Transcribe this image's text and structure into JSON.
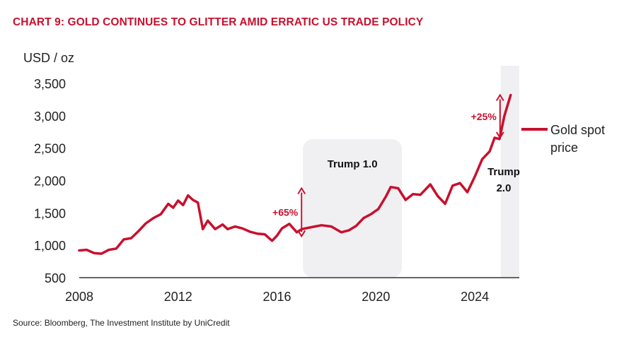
{
  "chart_data": {
    "type": "line",
    "title": "CHART 9: GOLD CONTINUES TO GLITTER AMID ERRATIC US TRADE POLICY",
    "ylabel": "USD / oz",
    "xlabel": "",
    "source": "Source: Bloomberg, The Investment Institute by UniCredit",
    "ylim": [
      500,
      3500
    ],
    "xlim": [
      2008,
      2025.8
    ],
    "yticks": [
      "3,500",
      "3,000",
      "2,500",
      "2,000",
      "1,500",
      "1,000",
      "500"
    ],
    "ytick_values": [
      3500,
      3000,
      2500,
      2000,
      1500,
      1000,
      500
    ],
    "xticks": [
      "2008",
      "2012",
      "2016",
      "2020",
      "2024"
    ],
    "xtick_values": [
      2008,
      2012,
      2016,
      2020,
      2024
    ],
    "color": "#c8102e",
    "shade_color": "#f0f0f2",
    "series": [
      {
        "name": "Gold spot price",
        "legend_lines": [
          "Gold spot",
          "price"
        ],
        "x": [
          2008.0,
          2008.3,
          2008.6,
          2008.9,
          2009.2,
          2009.5,
          2009.8,
          2010.1,
          2010.4,
          2010.7,
          2011.0,
          2011.3,
          2011.6,
          2011.8,
          2012.0,
          2012.2,
          2012.4,
          2012.6,
          2012.8,
          2013.0,
          2013.2,
          2013.5,
          2013.8,
          2014.0,
          2014.3,
          2014.6,
          2014.9,
          2015.2,
          2015.5,
          2015.8,
          2016.0,
          2016.2,
          2016.5,
          2016.8,
          2017.0,
          2017.4,
          2017.8,
          2018.2,
          2018.6,
          2018.9,
          2019.2,
          2019.5,
          2019.8,
          2020.1,
          2020.4,
          2020.6,
          2020.9,
          2021.2,
          2021.5,
          2021.8,
          2022.2,
          2022.5,
          2022.8,
          2023.1,
          2023.4,
          2023.7,
          2024.0,
          2024.3,
          2024.6,
          2024.8,
          2025.0,
          2025.2,
          2025.45
        ],
        "values": [
          920,
          930,
          880,
          870,
          930,
          950,
          1090,
          1110,
          1220,
          1340,
          1420,
          1480,
          1640,
          1580,
          1690,
          1620,
          1770,
          1700,
          1660,
          1250,
          1380,
          1250,
          1320,
          1250,
          1290,
          1260,
          1210,
          1180,
          1170,
          1070,
          1150,
          1260,
          1330,
          1200,
          1250,
          1280,
          1310,
          1290,
          1200,
          1230,
          1300,
          1420,
          1480,
          1560,
          1750,
          1900,
          1880,
          1700,
          1790,
          1780,
          1940,
          1760,
          1640,
          1920,
          1960,
          1820,
          2060,
          2330,
          2450,
          2660,
          2640,
          3000,
          3320
        ]
      }
    ],
    "shaded_periods": [
      {
        "label": "Trump 1.0",
        "start": 2017.05,
        "end": 2021.05
      },
      {
        "label_lines": [
          "Trump",
          "2.0"
        ],
        "start": 2025.05,
        "end": 2025.8
      }
    ],
    "annotations": [
      {
        "text": "+65%",
        "x": 2017.05,
        "y_low": 1140,
        "y_high": 1880
      },
      {
        "text": "+25%",
        "x": 2025.05,
        "y_low": 2660,
        "y_high": 3320
      }
    ]
  }
}
